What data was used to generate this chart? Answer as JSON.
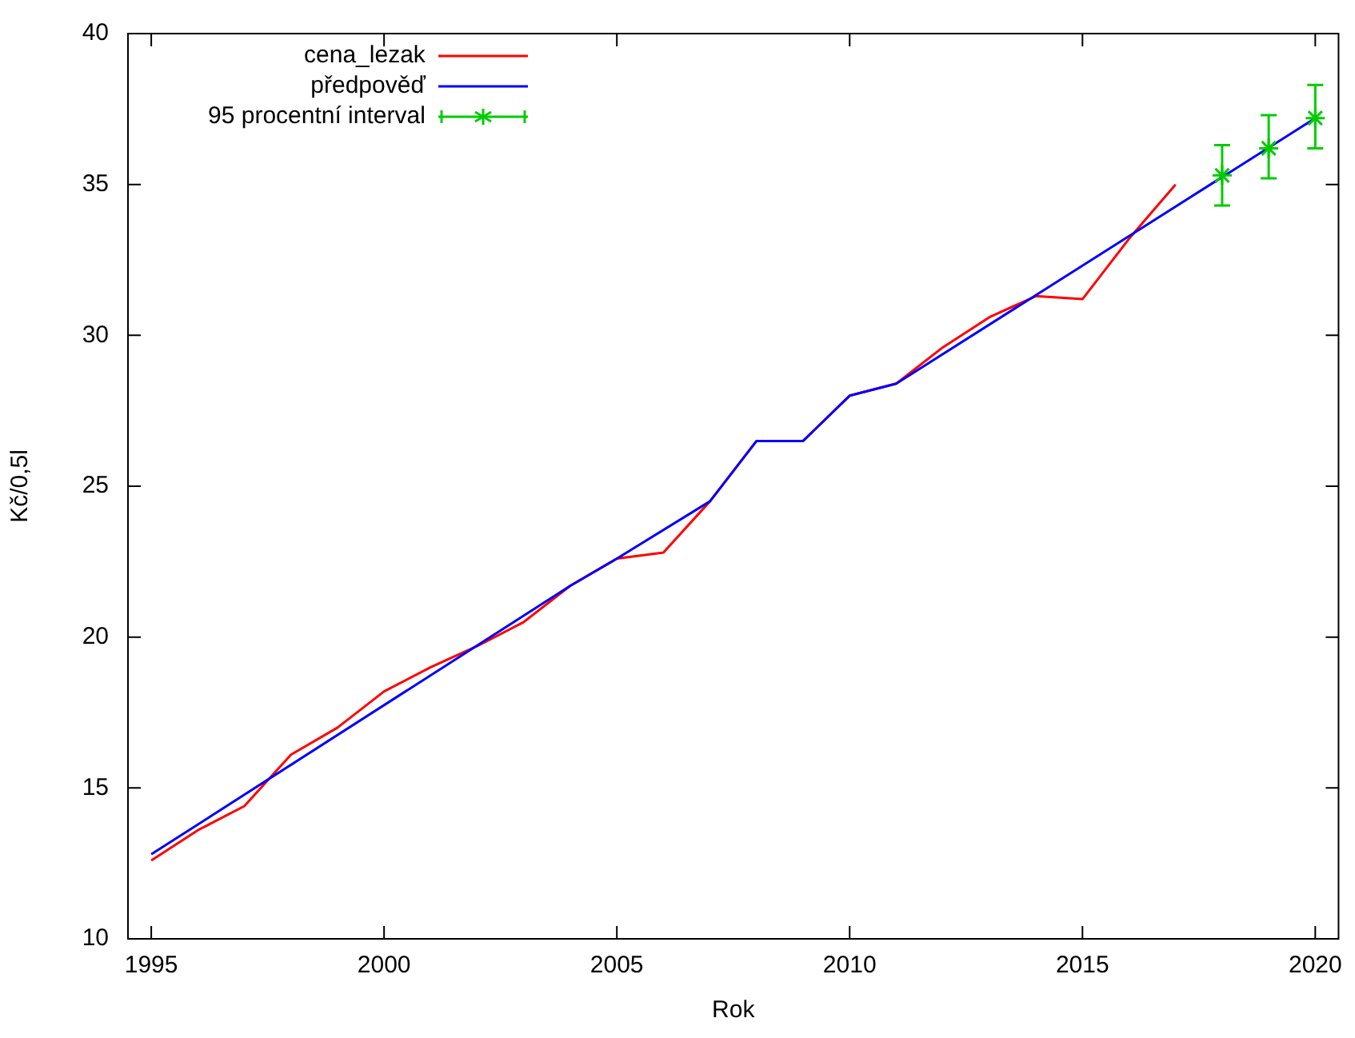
{
  "chart_data": {
    "type": "line",
    "xlabel": "Rok",
    "ylabel": "Kč/0,5l",
    "xlim": [
      1994.5,
      2020.5
    ],
    "xticks": [
      1995,
      2000,
      2005,
      2010,
      2015,
      2020
    ],
    "ylim": [
      10,
      40
    ],
    "yticks": [
      10,
      15,
      20,
      25,
      30,
      35,
      40
    ],
    "grid": false,
    "legend": "top left",
    "series": [
      {
        "name": "cena_lezak",
        "color": "#ff0000",
        "marker": "none",
        "x": [
          1995,
          1996,
          1997,
          1998,
          1999,
          2000,
          2001,
          2002,
          2003,
          2004,
          2005,
          2006,
          2007,
          2008,
          2009,
          2010,
          2011,
          2012,
          2013,
          2014,
          2015,
          2016,
          2017
        ],
        "values": [
          12.6,
          13.6,
          14.4,
          16.1,
          17.0,
          18.2,
          19.0,
          19.7,
          20.5,
          21.7,
          22.6,
          22.8,
          24.5,
          26.5,
          26.5,
          28.0,
          28.4,
          29.6,
          30.6,
          31.3,
          31.2,
          33.2,
          35.0
        ]
      },
      {
        "name": "předpověď",
        "color": "#0000ff",
        "marker": "none",
        "x": [
          1995,
          2004,
          2005,
          2007,
          2008,
          2009,
          2010,
          2011,
          2020
        ],
        "values": [
          12.8,
          21.7,
          22.6,
          24.5,
          26.5,
          26.5,
          28.0,
          28.4,
          37.2
        ]
      },
      {
        "name": "95 procentní interval",
        "type": "scatter",
        "color": "#00cc00",
        "marker": "cross",
        "x": [
          2018,
          2019,
          2020
        ],
        "values": [
          35.3,
          36.2,
          37.2
        ],
        "errors": [
          [
            34.3,
            36.3
          ],
          [
            35.2,
            37.3
          ],
          [
            36.2,
            38.3
          ]
        ]
      }
    ]
  }
}
